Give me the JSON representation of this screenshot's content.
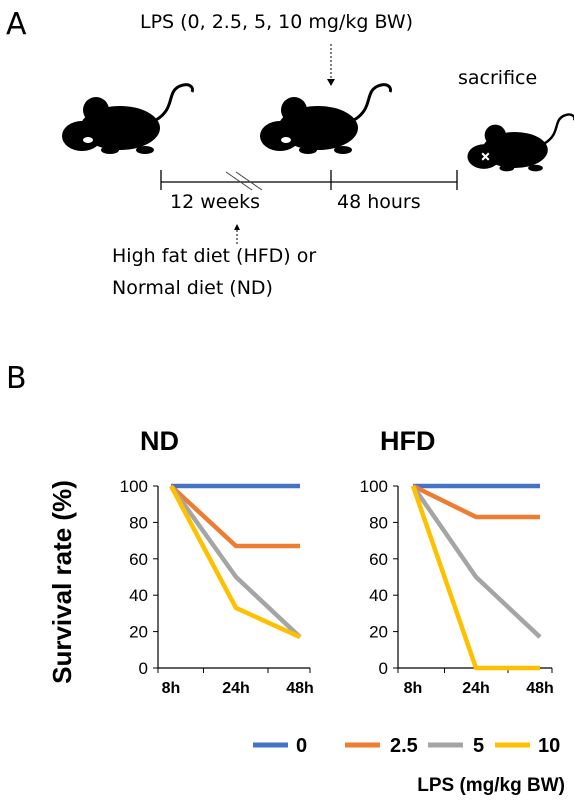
{
  "panel_a": {
    "label": "A",
    "lps_text": "LPS (0, 2.5, 5, 10 mg/kg BW)",
    "sacrifice_text": "sacrifice",
    "period1": "12 weeks",
    "period2": "48 hours",
    "diet_line1": "High fat diet (HFD) or",
    "diet_line2": "Normal diet (ND)"
  },
  "panel_b": {
    "label": "B",
    "ylabel": "Survival rate (%)",
    "legend_unit": "LPS (mg/kg BW)"
  },
  "colors": {
    "s0": "#4472C4",
    "s2_5": "#ED7D31",
    "s5": "#A5A5A5",
    "s10": "#FFC000"
  },
  "chart_data": [
    {
      "type": "line",
      "title": "ND",
      "categories": [
        "8h",
        "24h",
        "48h"
      ],
      "ylim": [
        0,
        100
      ],
      "yticks": [
        0,
        20,
        40,
        60,
        80,
        100
      ],
      "xlabel": "",
      "ylabel": "Survival rate (%)",
      "grid": false,
      "legend": "bottom",
      "series": [
        {
          "name": "0",
          "values": [
            100,
            100,
            100
          ]
        },
        {
          "name": "2.5",
          "values": [
            100,
            67,
            67
          ]
        },
        {
          "name": "5",
          "values": [
            100,
            50,
            17
          ]
        },
        {
          "name": "10",
          "values": [
            100,
            33,
            17
          ]
        }
      ]
    },
    {
      "type": "line",
      "title": "HFD",
      "categories": [
        "8h",
        "24h",
        "48h"
      ],
      "ylim": [
        0,
        100
      ],
      "yticks": [
        0,
        20,
        40,
        60,
        80,
        100
      ],
      "xlabel": "",
      "ylabel": "",
      "grid": false,
      "legend": "bottom",
      "series": [
        {
          "name": "0",
          "values": [
            100,
            100,
            100
          ]
        },
        {
          "name": "2.5",
          "values": [
            100,
            83,
            83
          ]
        },
        {
          "name": "5",
          "values": [
            100,
            50,
            17
          ]
        },
        {
          "name": "10",
          "values": [
            100,
            0,
            0
          ]
        }
      ]
    }
  ]
}
